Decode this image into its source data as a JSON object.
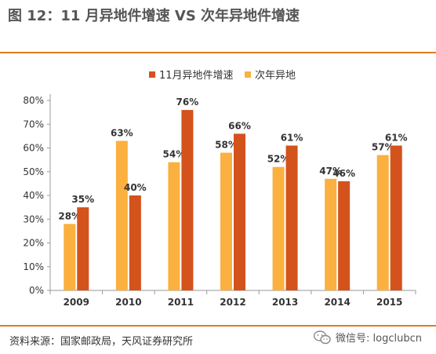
{
  "header": {
    "title": "图 12：11 月异地件增速 VS 次年异地件增速"
  },
  "footer": {
    "source": "资料来源：国家邮政局，天风证券研究所",
    "wechat": "微信号: logclubcn",
    "wechat_icon": "wechat-icon"
  },
  "colors": {
    "accent": "#e07b22",
    "series_2": "#fbb040",
    "series_1": "#d4521c"
  },
  "chart_data": {
    "type": "bar",
    "categories": [
      "2009",
      "2010",
      "2011",
      "2012",
      "2013",
      "2014",
      "2015"
    ],
    "series": [
      {
        "name": "次年异地",
        "color": "#fbb040",
        "values": [
          28,
          63,
          54,
          58,
          52,
          47,
          57
        ]
      },
      {
        "name": "11月异地件增速",
        "color": "#d4521c",
        "values": [
          35,
          40,
          76,
          66,
          61,
          46,
          61
        ]
      }
    ],
    "data_labels": [
      [
        "28%",
        "63%",
        "54%",
        "58%",
        "52%",
        "47%",
        "57%"
      ],
      [
        "35%",
        "40%",
        "76%",
        "66%",
        "61%",
        "46%",
        "61%"
      ]
    ],
    "legend": [
      {
        "label": "11月异地件增速",
        "color": "#d4521c"
      },
      {
        "label": "次年异地",
        "color": "#fbb040"
      }
    ],
    "legend_position": "top-right",
    "ylim": [
      0,
      80
    ],
    "yticks": [
      0,
      10,
      20,
      30,
      40,
      50,
      60,
      70,
      80
    ],
    "ytick_labels": [
      "0%",
      "10%",
      "20%",
      "30%",
      "40%",
      "50%",
      "60%",
      "70%",
      "80%"
    ],
    "grid": false,
    "title": "",
    "xlabel": "",
    "ylabel": ""
  }
}
